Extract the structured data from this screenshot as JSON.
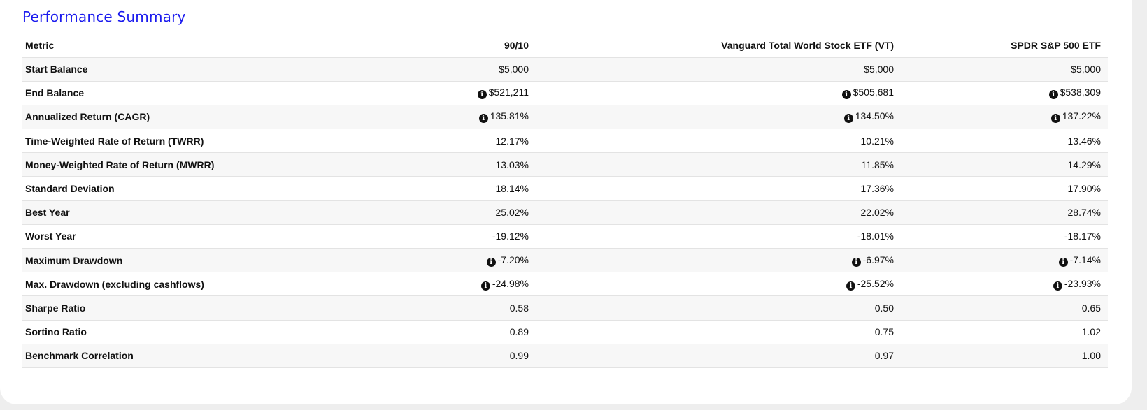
{
  "title": "Performance Summary",
  "columns": [
    "Metric",
    "90/10",
    "Vanguard Total World Stock ETF (VT)",
    "SPDR S&P 500 ETF"
  ],
  "rows": [
    {
      "metric": "Start Balance",
      "info": false,
      "values": [
        "$5,000",
        "$5,000",
        "$5,000"
      ]
    },
    {
      "metric": "End Balance",
      "info": true,
      "values": [
        "$521,211",
        "$505,681",
        "$538,309"
      ]
    },
    {
      "metric": "Annualized Return (CAGR)",
      "info": true,
      "values": [
        "135.81%",
        "134.50%",
        "137.22%"
      ]
    },
    {
      "metric": "Time-Weighted Rate of Return (TWRR)",
      "info": false,
      "values": [
        "12.17%",
        "10.21%",
        "13.46%"
      ]
    },
    {
      "metric": "Money-Weighted Rate of Return (MWRR)",
      "info": false,
      "values": [
        "13.03%",
        "11.85%",
        "14.29%"
      ]
    },
    {
      "metric": "Standard Deviation",
      "info": false,
      "values": [
        "18.14%",
        "17.36%",
        "17.90%"
      ]
    },
    {
      "metric": "Best Year",
      "info": false,
      "values": [
        "25.02%",
        "22.02%",
        "28.74%"
      ]
    },
    {
      "metric": "Worst Year",
      "info": false,
      "values": [
        "-19.12%",
        "-18.01%",
        "-18.17%"
      ]
    },
    {
      "metric": "Maximum Drawdown",
      "info": true,
      "values": [
        "-7.20%",
        "-6.97%",
        "-7.14%"
      ]
    },
    {
      "metric": "Max. Drawdown (excluding cashflows)",
      "info": true,
      "values": [
        "-24.98%",
        "-25.52%",
        "-23.93%"
      ]
    },
    {
      "metric": "Sharpe Ratio",
      "info": false,
      "values": [
        "0.58",
        "0.50",
        "0.65"
      ]
    },
    {
      "metric": "Sortino Ratio",
      "info": false,
      "values": [
        "0.89",
        "0.75",
        "1.02"
      ]
    },
    {
      "metric": "Benchmark Correlation",
      "info": false,
      "values": [
        "0.99",
        "0.97",
        "1.00"
      ]
    }
  ],
  "icons": {
    "info": "info-circle-icon"
  },
  "colors": {
    "title": "#1a1aee",
    "row_stripe": "#f7f7f7",
    "divider": "#e3e3e3"
  }
}
